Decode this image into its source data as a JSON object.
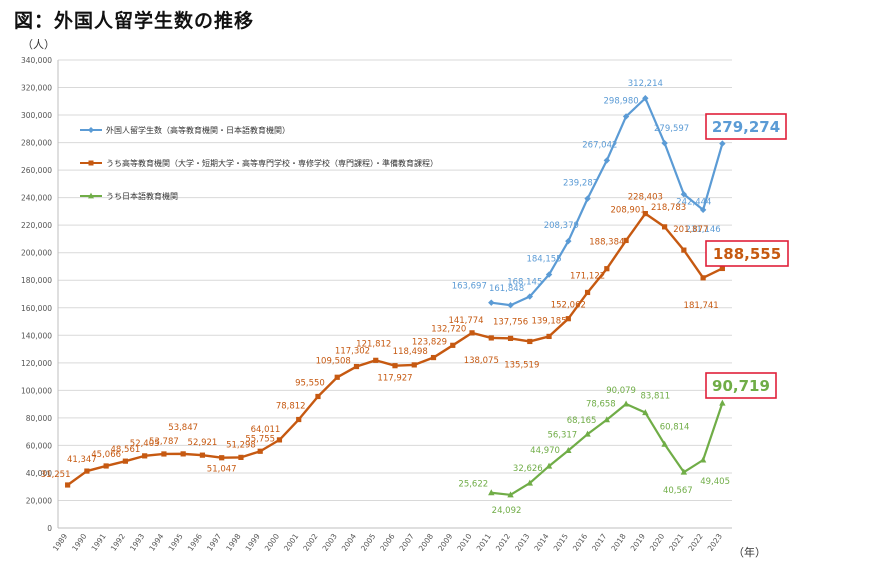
{
  "chart_data": {
    "type": "line",
    "title": "図：外国人留学生数の推移",
    "y_unit": "（人）",
    "x_unit": "（年）",
    "ylim": [
      0,
      340000
    ],
    "y_ticks": [
      "0",
      "20,000",
      "40,000",
      "60,000",
      "80,000",
      "100,000",
      "120,000",
      "140,000",
      "160,000",
      "180,000",
      "200,000",
      "220,000",
      "240,000",
      "260,000",
      "280,000",
      "300,000",
      "320,000",
      "340,000"
    ],
    "x": [
      "1989",
      "1990",
      "1991",
      "1992",
      "1993",
      "1994",
      "1995",
      "1996",
      "1997",
      "1998",
      "1999",
      "2000",
      "2001",
      "2002",
      "2003",
      "2004",
      "2005",
      "2006",
      "2007",
      "2008",
      "2009",
      "2010",
      "2011",
      "2012",
      "2013",
      "2014",
      "2015",
      "2016",
      "2017",
      "2018",
      "2019",
      "2020",
      "2021",
      "2022",
      "2023"
    ],
    "grid": "horizontal",
    "legend_position": "top-left",
    "series": [
      {
        "name": "外国人留学生数（高等教育機関・日本語教育機関）",
        "color": "#5b9bd5",
        "marker": "diamond",
        "values": [
          null,
          null,
          null,
          null,
          null,
          null,
          null,
          null,
          null,
          null,
          null,
          null,
          null,
          null,
          null,
          null,
          null,
          null,
          null,
          null,
          null,
          null,
          163697,
          161848,
          168145,
          184155,
          208379,
          239287,
          267042,
          298980,
          312214,
          279597,
          242444,
          231146,
          279274
        ],
        "labels": [
          null,
          null,
          null,
          null,
          null,
          null,
          null,
          null,
          null,
          null,
          null,
          null,
          null,
          null,
          null,
          null,
          null,
          null,
          null,
          null,
          null,
          null,
          "163,697",
          "161,848",
          "168,145",
          "184,155",
          "208,379",
          "239,287",
          "267,042",
          "298,980",
          "312,214",
          "279,597",
          "242,444",
          "231,146",
          "279,274"
        ]
      },
      {
        "name": "うち高等教育機関（大学・短期大学・高等専門学校・専修学校（専門課程）・準備教育課程）",
        "color": "#c65911",
        "marker": "square",
        "values": [
          31251,
          41347,
          45066,
          48561,
          52405,
          53787,
          53847,
          52921,
          51047,
          51298,
          55755,
          64011,
          78812,
          95550,
          109508,
          117302,
          121812,
          117927,
          118498,
          123829,
          132720,
          141774,
          138075,
          137756,
          135519,
          139185,
          152062,
          171122,
          188384,
          208901,
          228403,
          218783,
          201877,
          181741,
          188555
        ],
        "labels": [
          "31,251",
          "41,347",
          "45,066",
          "48,561",
          "52,405",
          "53,787",
          "53,847",
          "52,921",
          "51,047",
          "51,298",
          "55,755",
          "64,011",
          "78,812",
          "95,550",
          "109,508",
          "117,302",
          "121,812",
          "117,927",
          "118,498",
          "123,829",
          "132,720",
          "141,774",
          "138,075",
          "137,756",
          "135,519",
          "139,185",
          "152,062",
          "171,122",
          "188,384",
          "208,901",
          "228,403",
          "218,783",
          "201,877",
          "181,741",
          "188,555"
        ]
      },
      {
        "name": "うち日本語教育機関",
        "color": "#70ad47",
        "marker": "triangle",
        "values": [
          null,
          null,
          null,
          null,
          null,
          null,
          null,
          null,
          null,
          null,
          null,
          null,
          null,
          null,
          null,
          null,
          null,
          null,
          null,
          null,
          null,
          null,
          25622,
          24092,
          32626,
          44970,
          56317,
          68165,
          78658,
          90079,
          83811,
          60814,
          40567,
          49405,
          90719
        ],
        "labels": [
          null,
          null,
          null,
          null,
          null,
          null,
          null,
          null,
          null,
          null,
          null,
          null,
          null,
          null,
          null,
          null,
          null,
          null,
          null,
          null,
          null,
          null,
          "25,622",
          "24,092",
          "32,626",
          "44,970",
          "56,317",
          "68,165",
          "78,658",
          "90,079",
          "83,811",
          "60,814",
          "40,567",
          "49,405",
          "90,719"
        ]
      }
    ]
  }
}
